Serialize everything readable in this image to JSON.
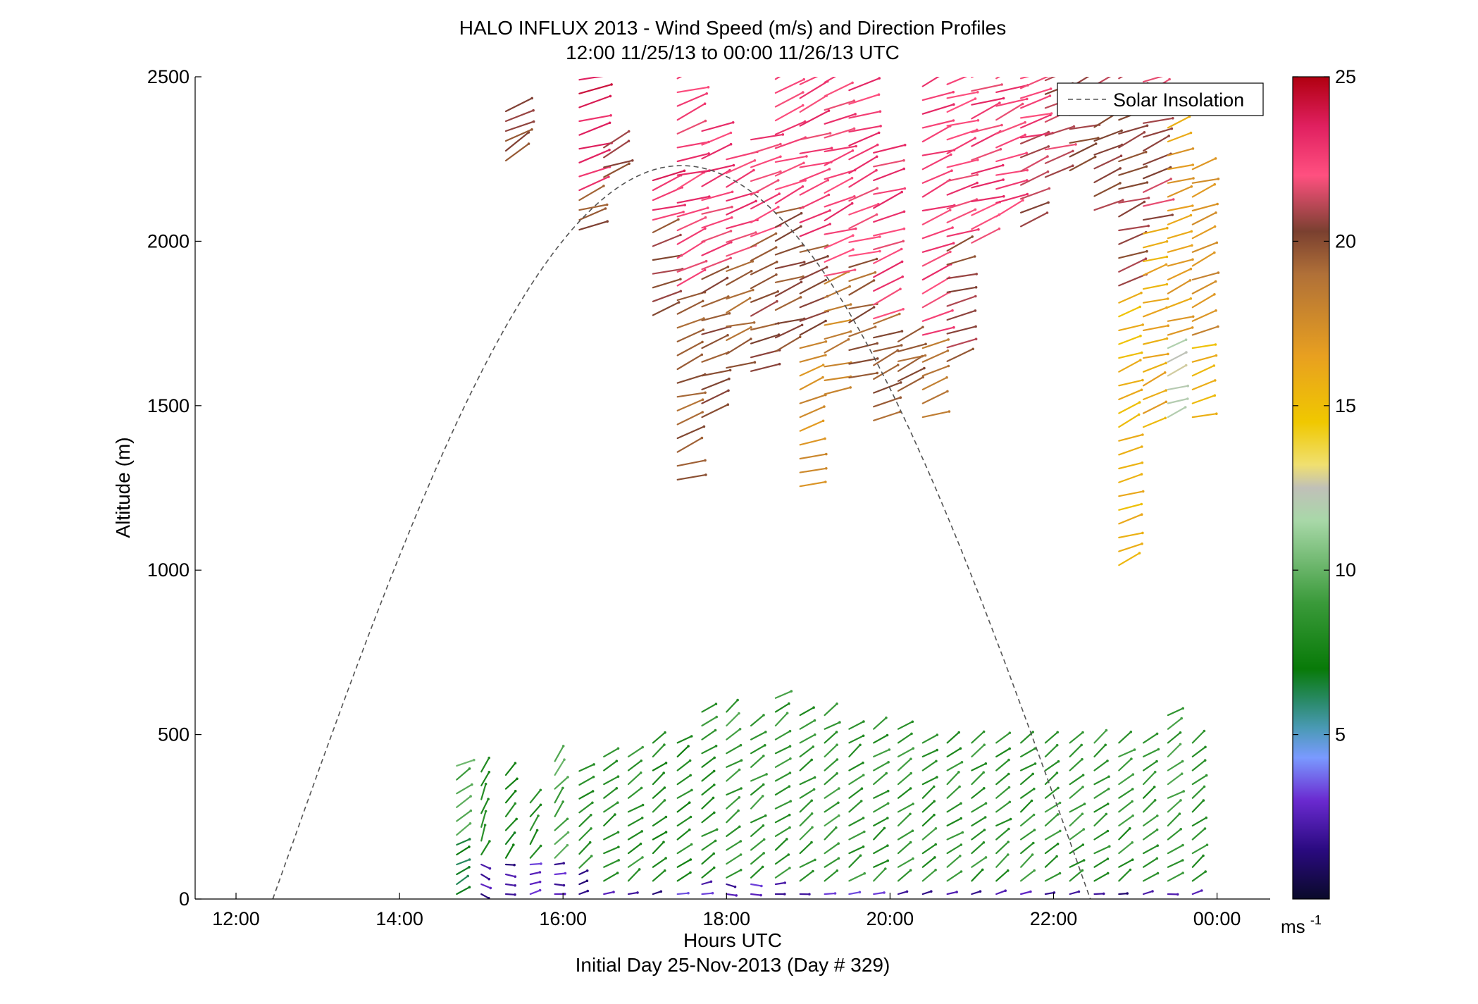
{
  "chart_data": {
    "type": "vector-field",
    "title": "HALO INFLUX 2013 - Wind Speed (m/s) and Direction Profiles",
    "subtitle": "12:00 11/25/13 to 00:00 11/26/13  UTC",
    "xlabel": "Hours UTC",
    "xlabel2": "Initial Day 25-Nov-2013 (Day # 329)",
    "ylabel": "Altitude (m)",
    "xlim": [
      11.5,
      24.65
    ],
    "ylim": [
      0,
      2500
    ],
    "xticks": [
      {
        "value": 12,
        "label": "12:00"
      },
      {
        "value": 14,
        "label": "14:00"
      },
      {
        "value": 16,
        "label": "16:00"
      },
      {
        "value": 18,
        "label": "18:00"
      },
      {
        "value": 20,
        "label": "20:00"
      },
      {
        "value": 22,
        "label": "22:00"
      },
      {
        "value": 24,
        "label": "00:00"
      }
    ],
    "yticks": [
      {
        "value": 0,
        "label": "0"
      },
      {
        "value": 500,
        "label": "500"
      },
      {
        "value": 1000,
        "label": "1000"
      },
      {
        "value": 1500,
        "label": "1500"
      },
      {
        "value": 2000,
        "label": "2000"
      },
      {
        "value": 2500,
        "label": "2500"
      }
    ],
    "legend": {
      "position": "top-right",
      "entries": [
        {
          "label": "Solar Insolation",
          "style": "dashed",
          "color": "#555555"
        }
      ]
    },
    "colorbar": {
      "range": [
        0,
        25
      ],
      "ticks": [
        {
          "value": 5,
          "label": "5"
        },
        {
          "value": 10,
          "label": "10"
        },
        {
          "value": 15,
          "label": "15"
        },
        {
          "value": 20,
          "label": "20"
        },
        {
          "value": 25,
          "label": "25"
        }
      ],
      "unit": "ms",
      "unit_sup": "-1",
      "colormap": [
        {
          "v": 0,
          "c": "#0a0a2a"
        },
        {
          "v": 1.5,
          "c": "#2a0a80"
        },
        {
          "v": 3.0,
          "c": "#6a2ad0"
        },
        {
          "v": 4.3,
          "c": "#7a9aff"
        },
        {
          "v": 5.2,
          "c": "#4a9ab5"
        },
        {
          "v": 6.0,
          "c": "#2a8a6a"
        },
        {
          "v": 7.0,
          "c": "#087a08"
        },
        {
          "v": 9.0,
          "c": "#3a9a3a"
        },
        {
          "v": 11.5,
          "c": "#a8d8a8"
        },
        {
          "v": 12.5,
          "c": "#c0c0b8"
        },
        {
          "v": 13.2,
          "c": "#f0e070"
        },
        {
          "v": 14.5,
          "c": "#f0c800"
        },
        {
          "v": 16.5,
          "c": "#e8a020"
        },
        {
          "v": 19.0,
          "c": "#b07038"
        },
        {
          "v": 20.3,
          "c": "#7a4030"
        },
        {
          "v": 22.0,
          "c": "#ff5080"
        },
        {
          "v": 23.5,
          "c": "#e02060"
        },
        {
          "v": 25,
          "c": "#b00010"
        }
      ]
    },
    "solar_insolation": {
      "start_hour": 12.45,
      "peak_hour": 17.45,
      "end_hour": 22.45,
      "peak_altitude_equiv": 2230
    },
    "profiles": [
      {
        "t": 14.7,
        "segments": [
          {
            "z0": 0,
            "z1": 180,
            "speed": 6.8,
            "dir": 240
          },
          {
            "z0": 180,
            "z1": 430,
            "speed": 9.5,
            "dir": 240
          }
        ]
      },
      {
        "t": 15.0,
        "segments": [
          {
            "z0": 0,
            "z1": 120,
            "speed": 2.0,
            "dir": 300
          },
          {
            "z0": 120,
            "z1": 400,
            "speed": 8.5,
            "dir": 200
          }
        ]
      },
      {
        "t": 15.3,
        "segments": [
          {
            "z0": 0,
            "z1": 110,
            "speed": 2.0,
            "dir": 280
          },
          {
            "z0": 110,
            "z1": 380,
            "speed": 7.5,
            "dir": 220
          },
          {
            "z0": 2230,
            "z1": 2410,
            "speed": 20,
            "dir": 240
          }
        ]
      },
      {
        "t": 15.6,
        "segments": [
          {
            "z0": 0,
            "z1": 110,
            "speed": 3.0,
            "dir": 260
          },
          {
            "z0": 110,
            "z1": 320,
            "speed": 8.5,
            "dir": 210
          }
        ]
      },
      {
        "t": 15.9,
        "segments": [
          {
            "z0": 0,
            "z1": 110,
            "speed": 2.5,
            "dir": 270
          },
          {
            "z0": 110,
            "z1": 420,
            "speed": 9.5,
            "dir": 220
          }
        ]
      },
      {
        "t": 16.2,
        "segments": [
          {
            "z0": 0,
            "z1": 80,
            "speed": 2.0,
            "dir": 250
          },
          {
            "z0": 80,
            "z1": 420,
            "speed": 8.5,
            "dir": 235
          },
          {
            "z0": 2020,
            "z1": 2140,
            "speed": 20,
            "dir": 250
          },
          {
            "z0": 2140,
            "z1": 2500,
            "speed": 23.5,
            "dir": 250
          }
        ]
      },
      {
        "t": 16.5,
        "segments": [
          {
            "z0": 0,
            "z1": 40,
            "speed": 2.0,
            "dir": 260
          },
          {
            "z0": 40,
            "z1": 440,
            "speed": 8.0,
            "dir": 235
          },
          {
            "z0": 2180,
            "z1": 2310,
            "speed": 20.5,
            "dir": 245
          }
        ]
      },
      {
        "t": 16.8,
        "segments": [
          {
            "z0": 0,
            "z1": 40,
            "speed": 2.5,
            "dir": 260
          },
          {
            "z0": 40,
            "z1": 470,
            "speed": 8.5,
            "dir": 235
          }
        ]
      },
      {
        "t": 17.1,
        "segments": [
          {
            "z0": 0,
            "z1": 40,
            "speed": 2.0,
            "dir": 260
          },
          {
            "z0": 40,
            "z1": 500,
            "speed": 8.0,
            "dir": 235
          },
          {
            "z0": 1760,
            "z1": 2050,
            "speed": 20.3,
            "dir": 250
          },
          {
            "z0": 2050,
            "z1": 2200,
            "speed": 23.0,
            "dir": 250
          }
        ]
      },
      {
        "t": 17.4,
        "segments": [
          {
            "z0": 0,
            "z1": 40,
            "speed": 3.0,
            "dir": 260
          },
          {
            "z0": 40,
            "z1": 510,
            "speed": 8.0,
            "dir": 235
          },
          {
            "z0": 1260,
            "z1": 1850,
            "speed": 19.5,
            "dir": 250
          },
          {
            "z0": 1850,
            "z1": 2500,
            "speed": 22.5,
            "dir": 250
          }
        ]
      },
      {
        "t": 17.7,
        "segments": [
          {
            "z0": 0,
            "z1": 50,
            "speed": 3.0,
            "dir": 260
          },
          {
            "z0": 50,
            "z1": 590,
            "speed": 8.5,
            "dir": 235
          },
          {
            "z0": 1450,
            "z1": 1900,
            "speed": 20.0,
            "dir": 250
          },
          {
            "z0": 1900,
            "z1": 2360,
            "speed": 22.5,
            "dir": 250
          }
        ]
      },
      {
        "t": 18.0,
        "segments": [
          {
            "z0": 0,
            "z1": 50,
            "speed": 2.0,
            "dir": 280
          },
          {
            "z0": 50,
            "z1": 590,
            "speed": 9.0,
            "dir": 235
          },
          {
            "z0": 1600,
            "z1": 1940,
            "speed": 19.5,
            "dir": 250
          },
          {
            "z0": 1940,
            "z1": 2260,
            "speed": 22.5,
            "dir": 250
          }
        ]
      },
      {
        "t": 18.3,
        "segments": [
          {
            "z0": 0,
            "z1": 50,
            "speed": 2.5,
            "dir": 270
          },
          {
            "z0": 50,
            "z1": 560,
            "speed": 8.5,
            "dir": 235
          },
          {
            "z0": 1590,
            "z1": 2000,
            "speed": 20.0,
            "dir": 250
          },
          {
            "z0": 2000,
            "z1": 2330,
            "speed": 22.5,
            "dir": 250
          }
        ]
      },
      {
        "t": 18.6,
        "segments": [
          {
            "z0": 0,
            "z1": 50,
            "speed": 2.0,
            "dir": 270
          },
          {
            "z0": 50,
            "z1": 620,
            "speed": 8.5,
            "dir": 235
          },
          {
            "z0": 1650,
            "z1": 2100,
            "speed": 20.0,
            "dir": 250
          },
          {
            "z0": 2100,
            "z1": 2500,
            "speed": 22.5,
            "dir": 250
          }
        ]
      },
      {
        "t": 18.9,
        "segments": [
          {
            "z0": 0,
            "z1": 40,
            "speed": 2.5,
            "dir": 260
          },
          {
            "z0": 40,
            "z1": 590,
            "speed": 8.5,
            "dir": 235
          },
          {
            "z0": 1240,
            "z1": 1700,
            "speed": 17.5,
            "dir": 250
          },
          {
            "z0": 1700,
            "z1": 2000,
            "speed": 20.0,
            "dir": 250
          },
          {
            "z0": 2000,
            "z1": 2500,
            "speed": 22.5,
            "dir": 250
          }
        ]
      },
      {
        "t": 19.2,
        "segments": [
          {
            "z0": 0,
            "z1": 40,
            "speed": 2.5,
            "dir": 260
          },
          {
            "z0": 40,
            "z1": 560,
            "speed": 9.0,
            "dir": 235
          },
          {
            "z0": 1520,
            "z1": 1880,
            "speed": 18.0,
            "dir": 250
          },
          {
            "z0": 1880,
            "z1": 2500,
            "speed": 22.5,
            "dir": 250
          }
        ]
      },
      {
        "t": 19.5,
        "segments": [
          {
            "z0": 0,
            "z1": 40,
            "speed": 3.0,
            "dir": 260
          },
          {
            "z0": 40,
            "z1": 540,
            "speed": 8.5,
            "dir": 235
          },
          {
            "z0": 1570,
            "z1": 1940,
            "speed": 19.5,
            "dir": 250
          },
          {
            "z0": 1940,
            "z1": 2500,
            "speed": 22.5,
            "dir": 250
          }
        ]
      },
      {
        "t": 19.8,
        "segments": [
          {
            "z0": 0,
            "z1": 40,
            "speed": 2.5,
            "dir": 260
          },
          {
            "z0": 40,
            "z1": 530,
            "speed": 8.5,
            "dir": 235
          },
          {
            "z0": 1440,
            "z1": 1750,
            "speed": 19.5,
            "dir": 250
          },
          {
            "z0": 1750,
            "z1": 2300,
            "speed": 22.5,
            "dir": 250
          }
        ]
      },
      {
        "t": 20.1,
        "segments": [
          {
            "z0": 0,
            "z1": 40,
            "speed": 2.5,
            "dir": 260
          },
          {
            "z0": 40,
            "z1": 520,
            "speed": 8.5,
            "dir": 235
          },
          {
            "z0": 1530,
            "z1": 1700,
            "speed": 19.5,
            "dir": 250
          }
        ]
      },
      {
        "t": 20.4,
        "segments": [
          {
            "z0": 0,
            "z1": 40,
            "speed": 2.0,
            "dir": 260
          },
          {
            "z0": 40,
            "z1": 510,
            "speed": 8.5,
            "dir": 235
          },
          {
            "z0": 1450,
            "z1": 1700,
            "speed": 18.0,
            "dir": 250
          },
          {
            "z0": 1700,
            "z1": 2500,
            "speed": 22.5,
            "dir": 250
          }
        ]
      },
      {
        "t": 20.7,
        "segments": [
          {
            "z0": 0,
            "z1": 40,
            "speed": 2.0,
            "dir": 260
          },
          {
            "z0": 40,
            "z1": 510,
            "speed": 8.5,
            "dir": 235
          },
          {
            "z0": 1620,
            "z1": 2000,
            "speed": 20.3,
            "dir": 250
          },
          {
            "z0": 2000,
            "z1": 2500,
            "speed": 22.5,
            "dir": 250
          }
        ]
      },
      {
        "t": 21.0,
        "segments": [
          {
            "z0": 0,
            "z1": 40,
            "speed": 2.5,
            "dir": 260
          },
          {
            "z0": 40,
            "z1": 500,
            "speed": 8.5,
            "dir": 235
          },
          {
            "z0": 1980,
            "z1": 2500,
            "speed": 22.5,
            "dir": 250
          }
        ]
      },
      {
        "t": 21.3,
        "segments": [
          {
            "z0": 0,
            "z1": 40,
            "speed": 2.0,
            "dir": 260
          },
          {
            "z0": 40,
            "z1": 500,
            "speed": 8.5,
            "dir": 235
          },
          {
            "z0": 2060,
            "z1": 2500,
            "speed": 22.5,
            "dir": 250
          }
        ]
      },
      {
        "t": 21.6,
        "segments": [
          {
            "z0": 0,
            "z1": 40,
            "speed": 2.0,
            "dir": 260
          },
          {
            "z0": 40,
            "z1": 500,
            "speed": 8.5,
            "dir": 235
          },
          {
            "z0": 2030,
            "z1": 2300,
            "speed": 21.0,
            "dir": 250
          },
          {
            "z0": 2300,
            "z1": 2500,
            "speed": 22.5,
            "dir": 250
          }
        ]
      },
      {
        "t": 21.9,
        "segments": [
          {
            "z0": 0,
            "z1": 40,
            "speed": 2.0,
            "dir": 260
          },
          {
            "z0": 40,
            "z1": 500,
            "speed": 8.5,
            "dir": 235
          },
          {
            "z0": 2180,
            "z1": 2500,
            "speed": 21.0,
            "dir": 250
          }
        ]
      },
      {
        "t": 22.2,
        "segments": [
          {
            "z0": 0,
            "z1": 40,
            "speed": 2.0,
            "dir": 260
          },
          {
            "z0": 40,
            "z1": 480,
            "speed": 8.5,
            "dir": 235
          },
          {
            "z0": 2200,
            "z1": 2500,
            "speed": 20.5,
            "dir": 250
          }
        ]
      },
      {
        "t": 22.5,
        "segments": [
          {
            "z0": 0,
            "z1": 40,
            "speed": 2.0,
            "dir": 260
          },
          {
            "z0": 40,
            "z1": 490,
            "speed": 8.5,
            "dir": 235
          },
          {
            "z0": 2080,
            "z1": 2500,
            "speed": 20.5,
            "dir": 250
          }
        ]
      },
      {
        "t": 22.8,
        "segments": [
          {
            "z0": 0,
            "z1": 40,
            "speed": 2.0,
            "dir": 260
          },
          {
            "z0": 40,
            "z1": 480,
            "speed": 8.5,
            "dir": 235
          },
          {
            "z0": 1000,
            "z1": 1850,
            "speed": 15.5,
            "dir": 250
          },
          {
            "z0": 1850,
            "z1": 2500,
            "speed": 20.5,
            "dir": 250
          }
        ]
      },
      {
        "t": 23.1,
        "segments": [
          {
            "z0": 0,
            "z1": 40,
            "speed": 2.5,
            "dir": 260
          },
          {
            "z0": 40,
            "z1": 480,
            "speed": 8.5,
            "dir": 235
          },
          {
            "z0": 1420,
            "z1": 2050,
            "speed": 16.0,
            "dir": 250
          },
          {
            "z0": 2050,
            "z1": 2500,
            "speed": 21.0,
            "dir": 250
          }
        ]
      },
      {
        "t": 23.4,
        "segments": [
          {
            "z0": 0,
            "z1": 40,
            "speed": 2.0,
            "dir": 260
          },
          {
            "z0": 40,
            "z1": 560,
            "speed": 9.0,
            "dir": 235
          },
          {
            "z0": 1450,
            "z1": 1700,
            "speed": 12.5,
            "dir": 250
          },
          {
            "z0": 1700,
            "z1": 2370,
            "speed": 16.5,
            "dir": 250
          }
        ]
      },
      {
        "t": 23.7,
        "segments": [
          {
            "z0": 0,
            "z1": 40,
            "speed": 2.0,
            "dir": 260
          },
          {
            "z0": 40,
            "z1": 500,
            "speed": 8.5,
            "dir": 235
          },
          {
            "z0": 1450,
            "z1": 1700,
            "speed": 15.5,
            "dir": 250
          },
          {
            "z0": 1700,
            "z1": 2230,
            "speed": 17.5,
            "dir": 250
          }
        ]
      }
    ]
  }
}
